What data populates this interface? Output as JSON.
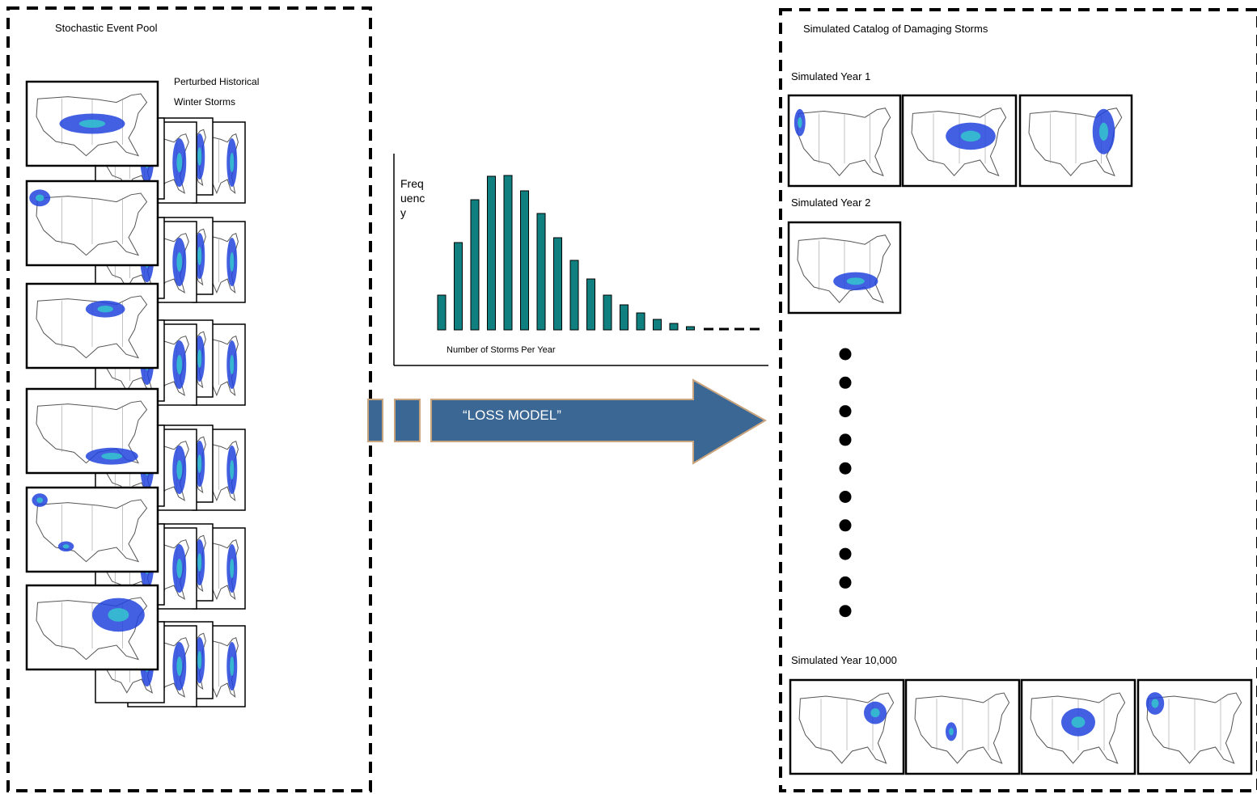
{
  "left_panel": {
    "title": "Stochastic Event Pool",
    "label_lines": [
      "Perturbed Historical",
      "Winter Storms"
    ]
  },
  "histogram": {
    "type": "bar",
    "ylabel_lines": [
      "Freq",
      "uenc",
      "y"
    ],
    "xlabel": "Number of Storms Per Year",
    "values": [
      43,
      108,
      161,
      190,
      191,
      172,
      144,
      114,
      86,
      63,
      43,
      31,
      21,
      13,
      8,
      4
    ],
    "color": "#0f7f80"
  },
  "arrow": {
    "label": "“LOSS MODEL”"
  },
  "right_panel": {
    "title": "Simulated Catalog of Damaging Storms",
    "years": [
      {
        "label": "Simulated Year 1"
      },
      {
        "label": "Simulated Year 2"
      },
      {
        "label": "Simulated Year 10,000"
      }
    ]
  }
}
